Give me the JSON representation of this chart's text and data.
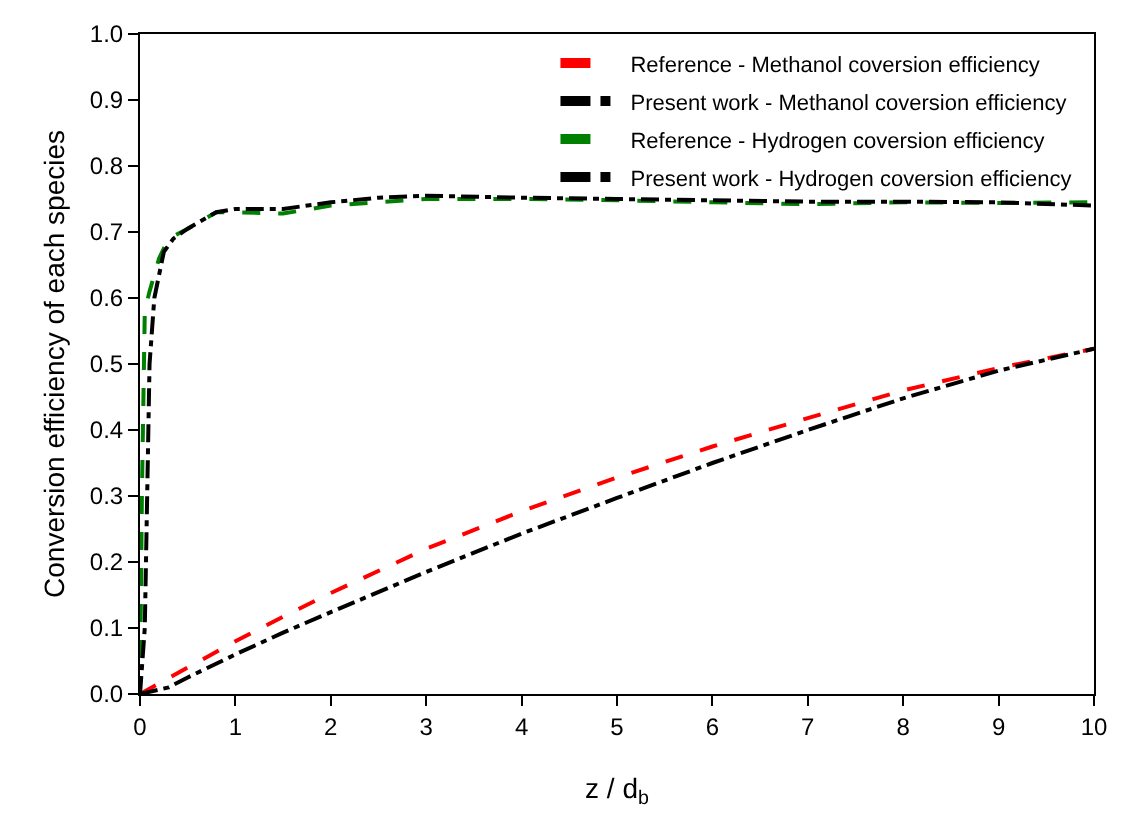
{
  "chart_data": {
    "type": "line",
    "xlabel": "z / d$_{b}$",
    "ylabel": "Conversion efficiency of each species",
    "xlim": [
      0,
      10
    ],
    "xticks": [
      0,
      1,
      2,
      3,
      4,
      5,
      6,
      7,
      8,
      9,
      10
    ],
    "ylim": [
      0,
      1
    ],
    "yticks": [
      "0.0",
      0.1,
      0.2,
      0.3,
      0.4,
      0.5,
      0.6,
      0.7,
      0.8,
      0.9,
      "1.0"
    ],
    "grid": false,
    "legend": "top right",
    "marker": "none",
    "series": [
      {
        "name": "Reference - Methanol coversion efficiency",
        "color": "#ff0000",
        "line_style": "dashed",
        "x": [
          0,
          0.5,
          1,
          1.5,
          2,
          3,
          4,
          5,
          6,
          7,
          8,
          9,
          10
        ],
        "values": [
          0,
          0.04,
          0.08,
          0.117,
          0.153,
          0.22,
          0.277,
          0.328,
          0.375,
          0.418,
          0.46,
          0.494,
          0.523
        ]
      },
      {
        "name": "Present work - Methanol coversion efficiency",
        "color": "#000000",
        "line_style": "dashdot",
        "x": [
          0,
          0.3,
          0.5,
          1,
          1.5,
          2,
          3,
          4,
          5,
          6,
          7,
          8,
          9,
          10
        ],
        "values": [
          0,
          0.01,
          0.025,
          0.06,
          0.093,
          0.124,
          0.185,
          0.243,
          0.297,
          0.35,
          0.4,
          0.448,
          0.49,
          0.523
        ]
      },
      {
        "name": "Reference - Hydrogen coversion efficiency",
        "color": "#008000",
        "line_style": "dashed",
        "x": [
          0,
          0.02,
          0.05,
          0.1,
          0.2,
          0.3,
          0.5,
          0.8,
          1,
          1.5,
          2,
          2.5,
          3,
          4,
          5,
          6,
          7,
          8,
          9,
          10
        ],
        "values": [
          0,
          0.3,
          0.58,
          0.61,
          0.66,
          0.69,
          0.705,
          0.73,
          0.73,
          0.728,
          0.74,
          0.745,
          0.75,
          0.75,
          0.748,
          0.745,
          0.742,
          0.745,
          0.744,
          0.745
        ]
      },
      {
        "name": "Present work - Hydrogen coversion efficiency",
        "color": "#000000",
        "line_style": "dashdot",
        "x": [
          0,
          0.05,
          0.1,
          0.15,
          0.25,
          0.35,
          0.5,
          0.8,
          1,
          1.5,
          2,
          2.5,
          3,
          4,
          5,
          6,
          7,
          8,
          9,
          10
        ],
        "values": [
          0,
          0.1,
          0.5,
          0.6,
          0.67,
          0.69,
          0.705,
          0.73,
          0.735,
          0.735,
          0.745,
          0.752,
          0.755,
          0.752,
          0.75,
          0.748,
          0.746,
          0.746,
          0.745,
          0.74
        ]
      }
    ]
  }
}
